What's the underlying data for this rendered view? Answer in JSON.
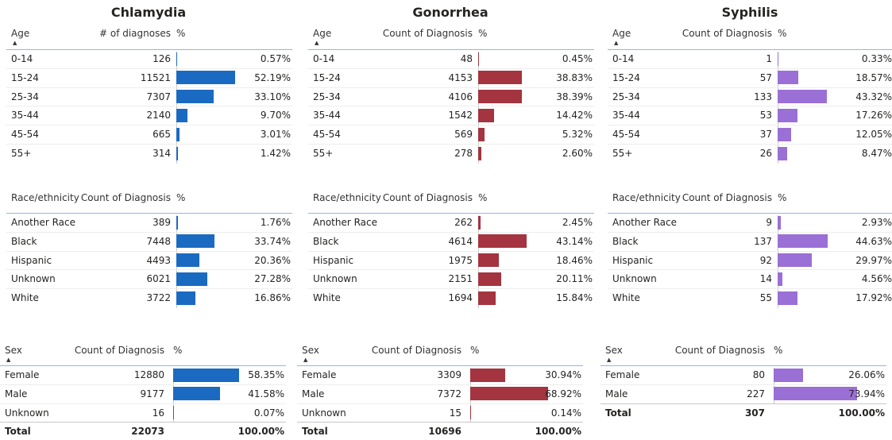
{
  "diseases": [
    {
      "title": "Chlamydia",
      "bar_color": "#1b6ac1",
      "tables": [
        {
          "headers": [
            "Age",
            "# of diagnoses",
            "%"
          ],
          "rows": [
            {
              "label": "0-14",
              "count": 126,
              "pct": 0.57,
              "pct_label": "0.57%"
            },
            {
              "label": "15-24",
              "count": 11521,
              "pct": 52.19,
              "pct_label": "52.19%"
            },
            {
              "label": "25-34",
              "count": 7307,
              "pct": 33.1,
              "pct_label": "33.10%"
            },
            {
              "label": "35-44",
              "count": 2140,
              "pct": 9.7,
              "pct_label": "9.70%"
            },
            {
              "label": "45-54",
              "count": 665,
              "pct": 3.01,
              "pct_label": "3.01%"
            },
            {
              "label": "55+",
              "count": 314,
              "pct": 1.42,
              "pct_label": "1.42%"
            }
          ]
        },
        {
          "headers": [
            "Race/ethnicity",
            "Count of Diagnosis",
            "%"
          ],
          "rows": [
            {
              "label": "Another Race",
              "count": 389,
              "pct": 1.76,
              "pct_label": "1.76%"
            },
            {
              "label": "Black",
              "count": 7448,
              "pct": 33.74,
              "pct_label": "33.74%"
            },
            {
              "label": "Hispanic",
              "count": 4493,
              "pct": 20.36,
              "pct_label": "20.36%"
            },
            {
              "label": "Unknown",
              "count": 6021,
              "pct": 27.28,
              "pct_label": "27.28%"
            },
            {
              "label": "White",
              "count": 3722,
              "pct": 16.86,
              "pct_label": "16.86%"
            }
          ]
        },
        {
          "headers": [
            "Sex",
            "Count of Diagnosis",
            "%"
          ],
          "rows": [
            {
              "label": "Female",
              "count": 12880,
              "pct": 58.35,
              "pct_label": "58.35%"
            },
            {
              "label": "Male",
              "count": 9177,
              "pct": 41.58,
              "pct_label": "41.58%"
            },
            {
              "label": "Unknown",
              "count": 16,
              "pct": 0.07,
              "pct_label": "0.07%"
            }
          ],
          "total": {
            "label": "Total",
            "count": 22073,
            "pct_label": "100.00%"
          }
        }
      ]
    },
    {
      "title": "Gonorrhea",
      "bar_color": "#a4343f",
      "tables": [
        {
          "headers": [
            "Age",
            "Count of Diagnosis",
            "%"
          ],
          "rows": [
            {
              "label": "0-14",
              "count": 48,
              "pct": 0.45,
              "pct_label": "0.45%"
            },
            {
              "label": "15-24",
              "count": 4153,
              "pct": 38.83,
              "pct_label": "38.83%"
            },
            {
              "label": "25-34",
              "count": 4106,
              "pct": 38.39,
              "pct_label": "38.39%"
            },
            {
              "label": "35-44",
              "count": 1542,
              "pct": 14.42,
              "pct_label": "14.42%"
            },
            {
              "label": "45-54",
              "count": 569,
              "pct": 5.32,
              "pct_label": "5.32%"
            },
            {
              "label": "55+",
              "count": 278,
              "pct": 2.6,
              "pct_label": "2.60%"
            }
          ]
        },
        {
          "headers": [
            "Race/ethnicity",
            "Count of Diagnosis",
            "%"
          ],
          "rows": [
            {
              "label": "Another Race",
              "count": 262,
              "pct": 2.45,
              "pct_label": "2.45%"
            },
            {
              "label": "Black",
              "count": 4614,
              "pct": 43.14,
              "pct_label": "43.14%"
            },
            {
              "label": "Hispanic",
              "count": 1975,
              "pct": 18.46,
              "pct_label": "18.46%"
            },
            {
              "label": "Unknown",
              "count": 2151,
              "pct": 20.11,
              "pct_label": "20.11%"
            },
            {
              "label": "White",
              "count": 1694,
              "pct": 15.84,
              "pct_label": "15.84%"
            }
          ]
        },
        {
          "headers": [
            "Sex",
            "Count of Diagnosis",
            "%"
          ],
          "rows": [
            {
              "label": "Female",
              "count": 3309,
              "pct": 30.94,
              "pct_label": "30.94%"
            },
            {
              "label": "Male",
              "count": 7372,
              "pct": 68.92,
              "pct_label": "68.92%"
            },
            {
              "label": "Unknown",
              "count": 15,
              "pct": 0.14,
              "pct_label": "0.14%"
            }
          ],
          "total": {
            "label": "Total",
            "count": 10696,
            "pct_label": "100.00%"
          }
        }
      ]
    },
    {
      "title": "Syphilis",
      "bar_color": "#9a6fd6",
      "tables": [
        {
          "headers": [
            "Age",
            "Count of Diagnosis",
            "%"
          ],
          "rows": [
            {
              "label": "0-14",
              "count": 1,
              "pct": 0.33,
              "pct_label": "0.33%"
            },
            {
              "label": "15-24",
              "count": 57,
              "pct": 18.57,
              "pct_label": "18.57%"
            },
            {
              "label": "25-34",
              "count": 133,
              "pct": 43.32,
              "pct_label": "43.32%"
            },
            {
              "label": "35-44",
              "count": 53,
              "pct": 17.26,
              "pct_label": "17.26%"
            },
            {
              "label": "45-54",
              "count": 37,
              "pct": 12.05,
              "pct_label": "12.05%"
            },
            {
              "label": "55+",
              "count": 26,
              "pct": 8.47,
              "pct_label": "8.47%"
            }
          ]
        },
        {
          "headers": [
            "Race/ethnicity",
            "Count of Diagnosis",
            "%"
          ],
          "rows": [
            {
              "label": "Another Race",
              "count": 9,
              "pct": 2.93,
              "pct_label": "2.93%"
            },
            {
              "label": "Black",
              "count": 137,
              "pct": 44.63,
              "pct_label": "44.63%"
            },
            {
              "label": "Hispanic",
              "count": 92,
              "pct": 29.97,
              "pct_label": "29.97%"
            },
            {
              "label": "Unknown",
              "count": 14,
              "pct": 4.56,
              "pct_label": "4.56%"
            },
            {
              "label": "White",
              "count": 55,
              "pct": 17.92,
              "pct_label": "17.92%"
            }
          ]
        },
        {
          "headers": [
            "Sex",
            "Count of Diagnosis",
            "%"
          ],
          "rows": [
            {
              "label": "Female",
              "count": 80,
              "pct": 26.06,
              "pct_label": "26.06%"
            },
            {
              "label": "Male",
              "count": 227,
              "pct": 73.94,
              "pct_label": "73.94%"
            }
          ],
          "total": {
            "label": "Total",
            "count": 307,
            "pct_label": "100.00%"
          }
        }
      ]
    }
  ]
}
